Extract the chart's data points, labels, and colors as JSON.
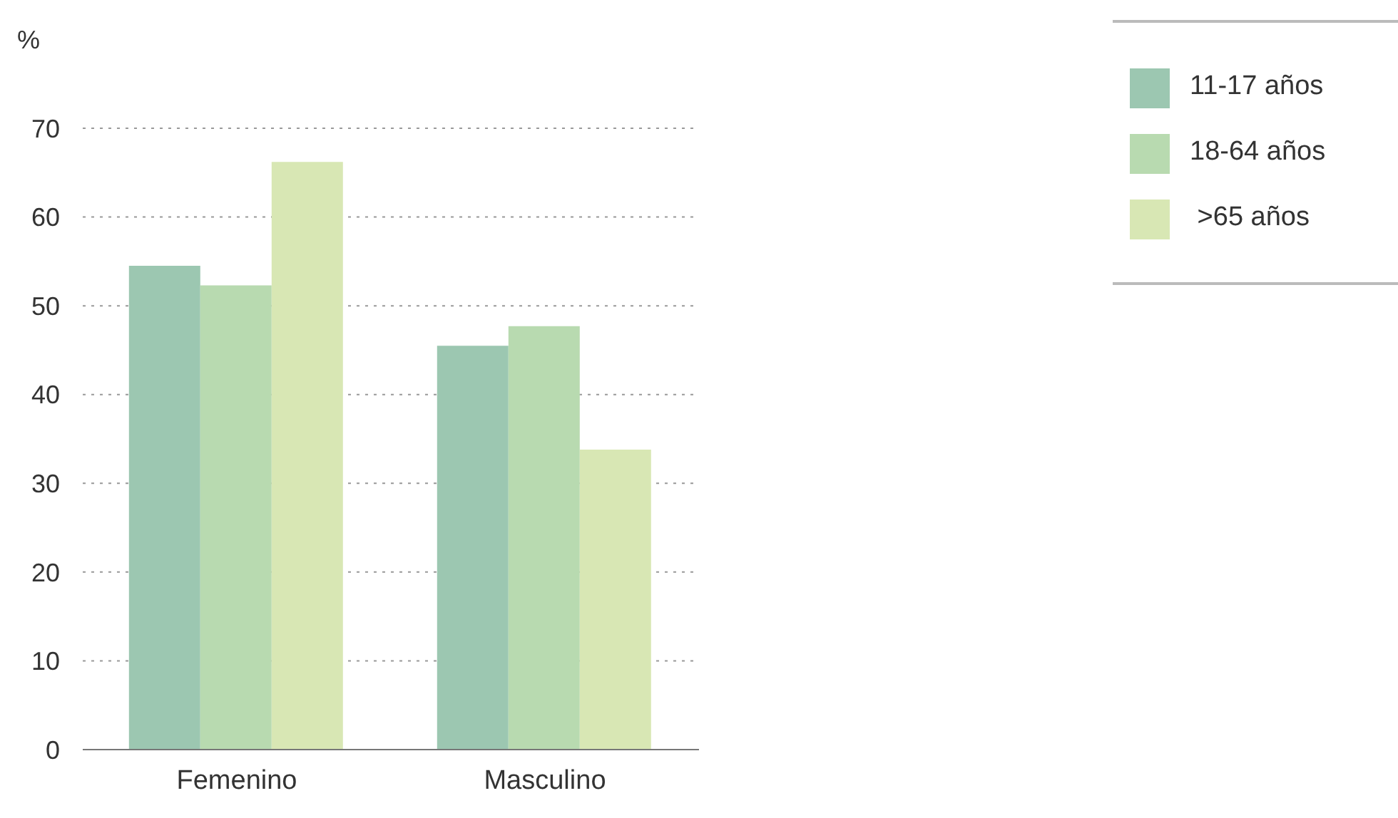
{
  "chart_data": {
    "type": "bar",
    "ylabel": "%",
    "categories": [
      "Femenino",
      "Masculino"
    ],
    "series": [
      {
        "name": "11-17 años",
        "color": "#9cc7b1",
        "values": [
          54.5,
          45.5
        ]
      },
      {
        "name": "18-64 años",
        "color": "#b8dab0",
        "values": [
          52.3,
          47.7
        ]
      },
      {
        "name": " >65 años",
        "color": "#d8e7b4",
        "values": [
          66.2,
          33.8
        ]
      }
    ],
    "ylim": [
      0,
      70
    ],
    "yticks": [
      0,
      10,
      20,
      30,
      40,
      50,
      60,
      70
    ],
    "grid": "y",
    "legend": "top right"
  }
}
